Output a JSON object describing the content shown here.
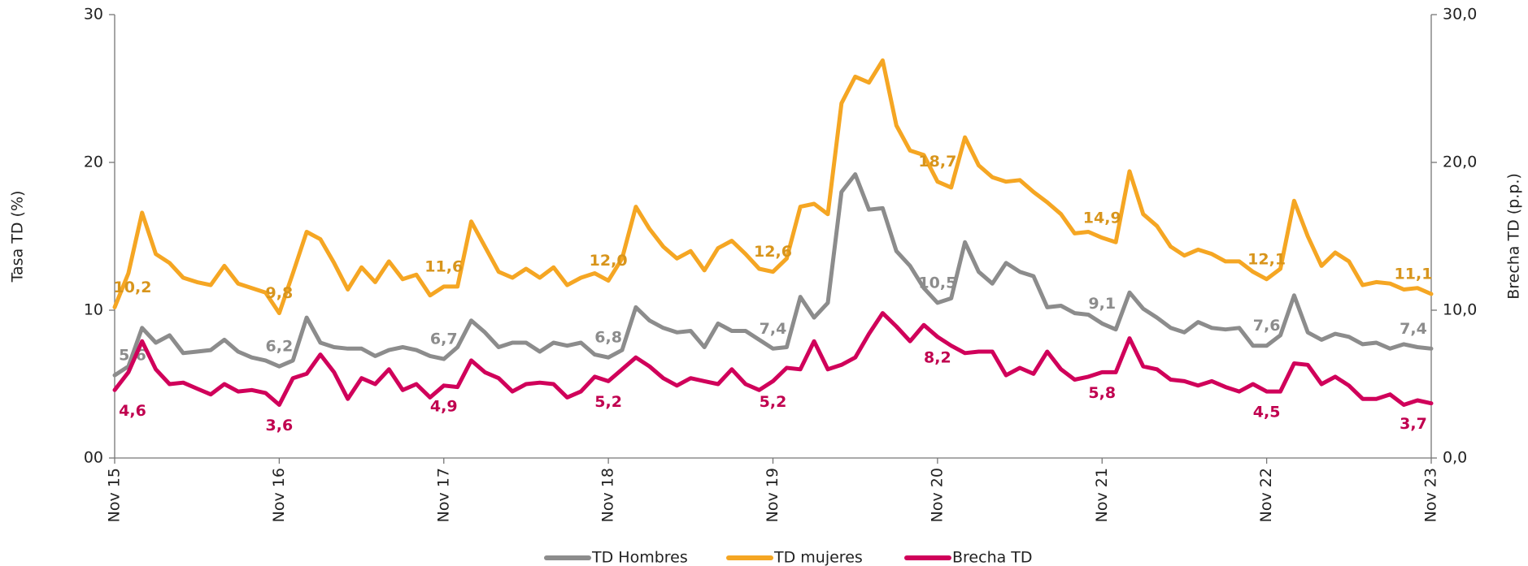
{
  "chart_data": {
    "type": "line",
    "y_label": "Tasa TD (%)",
    "y2_label": "Brecha TD (p.p.)",
    "categories": [
      "Nov 15",
      null,
      null,
      null,
      null,
      null,
      null,
      null,
      null,
      null,
      null,
      null,
      "Nov 16",
      null,
      null,
      null,
      null,
      null,
      null,
      null,
      null,
      null,
      null,
      null,
      "Nov 17",
      null,
      null,
      null,
      null,
      null,
      null,
      null,
      null,
      null,
      null,
      null,
      "Nov 18",
      null,
      null,
      null,
      null,
      null,
      null,
      null,
      null,
      null,
      null,
      null,
      "Nov 19",
      null,
      null,
      null,
      null,
      null,
      null,
      null,
      null,
      null,
      null,
      null,
      "Nov 20",
      null,
      null,
      null,
      null,
      null,
      null,
      null,
      null,
      null,
      null,
      null,
      "Nov 21",
      null,
      null,
      null,
      null,
      null,
      null,
      null,
      null,
      null,
      null,
      null,
      "Nov 22",
      null,
      null,
      null,
      null,
      null,
      null,
      null,
      null,
      null,
      null,
      null,
      "Nov 23"
    ],
    "ylim": [
      0,
      30
    ],
    "yticks": [
      {
        "value": 0,
        "label": "00"
      },
      10,
      20,
      30
    ],
    "y2lim": [
      0,
      30
    ],
    "y2ticks": [
      {
        "value": 0,
        "label": "0,0"
      },
      {
        "value": 10,
        "label": "10,0"
      },
      {
        "value": 20,
        "label": "20,0"
      },
      {
        "value": 30,
        "label": "30,0"
      }
    ],
    "legend": "bottom",
    "series": [
      {
        "name": "TD Hombres",
        "color": "#8c8c8c",
        "values": [
          5.6,
          6.2,
          8.8,
          7.8,
          8.3,
          7.1,
          7.2,
          7.3,
          8.0,
          7.2,
          6.8,
          6.6,
          6.2,
          6.6,
          9.5,
          7.8,
          7.5,
          7.4,
          7.4,
          6.9,
          7.3,
          7.5,
          7.3,
          6.9,
          6.7,
          7.5,
          9.3,
          8.5,
          7.5,
          7.8,
          7.8,
          7.2,
          7.8,
          7.6,
          7.8,
          7.0,
          6.8,
          7.3,
          10.2,
          9.3,
          8.8,
          8.5,
          8.6,
          7.5,
          9.1,
          8.6,
          8.6,
          8.0,
          7.4,
          7.5,
          10.9,
          9.5,
          10.5,
          18.0,
          19.2,
          16.8,
          16.9,
          14.0,
          13.0,
          11.5,
          10.5,
          10.8,
          14.6,
          12.6,
          11.8,
          13.2,
          12.6,
          12.3,
          10.2,
          10.3,
          9.8,
          9.7,
          9.1,
          8.7,
          11.2,
          10.1,
          9.5,
          8.8,
          8.5,
          9.2,
          8.8,
          8.7,
          8.8,
          7.6,
          7.6,
          8.3,
          11.0,
          8.5,
          8.0,
          8.4,
          8.2,
          7.7,
          7.8,
          7.4,
          7.7,
          7.5,
          7.4
        ],
        "value_labels": [
          "5,6",
          null,
          null,
          null,
          null,
          null,
          null,
          null,
          null,
          null,
          null,
          null,
          "6,2",
          null,
          null,
          null,
          null,
          null,
          null,
          null,
          null,
          null,
          null,
          null,
          "6,7",
          null,
          null,
          null,
          null,
          null,
          null,
          null,
          null,
          null,
          null,
          null,
          "6,8",
          null,
          null,
          null,
          null,
          null,
          null,
          null,
          null,
          null,
          null,
          null,
          "7,4",
          null,
          null,
          null,
          null,
          null,
          null,
          null,
          null,
          null,
          null,
          null,
          "10,5",
          null,
          null,
          null,
          null,
          null,
          null,
          null,
          null,
          null,
          null,
          null,
          "9,1",
          null,
          null,
          null,
          null,
          null,
          null,
          null,
          null,
          null,
          null,
          null,
          "7,6",
          null,
          null,
          null,
          null,
          null,
          null,
          null,
          null,
          null,
          null,
          null,
          "7,4"
        ]
      },
      {
        "name": "TD mujeres",
        "color": "#f5a623",
        "values": [
          10.2,
          12.5,
          16.6,
          13.8,
          13.2,
          12.2,
          11.9,
          11.7,
          13.0,
          11.8,
          11.5,
          11.2,
          9.8,
          12.5,
          15.3,
          14.8,
          13.2,
          11.4,
          12.9,
          11.9,
          13.3,
          12.1,
          12.4,
          11.0,
          11.6,
          11.6,
          16.0,
          14.3,
          12.6,
          12.2,
          12.8,
          12.2,
          12.9,
          11.7,
          12.2,
          12.5,
          12.0,
          13.5,
          17.0,
          15.5,
          14.3,
          13.5,
          14.0,
          12.7,
          14.2,
          14.7,
          13.8,
          12.8,
          12.6,
          13.5,
          17.0,
          17.2,
          16.5,
          24.0,
          25.8,
          25.4,
          26.9,
          22.5,
          20.8,
          20.5,
          18.7,
          18.3,
          21.7,
          19.8,
          19.0,
          18.7,
          18.8,
          18.0,
          17.3,
          16.5,
          15.2,
          15.3,
          14.9,
          14.6,
          19.4,
          16.5,
          15.7,
          14.3,
          13.7,
          14.1,
          13.8,
          13.3,
          13.3,
          12.6,
          12.1,
          12.8,
          17.4,
          15.0,
          13.0,
          13.9,
          13.3,
          11.7,
          11.9,
          11.8,
          11.4,
          11.5,
          11.1
        ],
        "value_labels": [
          "10,2",
          null,
          null,
          null,
          null,
          null,
          null,
          null,
          null,
          null,
          null,
          null,
          "9,8",
          null,
          null,
          null,
          null,
          null,
          null,
          null,
          null,
          null,
          null,
          null,
          "11,6",
          null,
          null,
          null,
          null,
          null,
          null,
          null,
          null,
          null,
          null,
          null,
          "12,0",
          null,
          null,
          null,
          null,
          null,
          null,
          null,
          null,
          null,
          null,
          null,
          "12,6",
          null,
          null,
          null,
          null,
          null,
          null,
          null,
          null,
          null,
          null,
          null,
          "18,7",
          null,
          null,
          null,
          null,
          null,
          null,
          null,
          null,
          null,
          null,
          null,
          "14,9",
          null,
          null,
          null,
          null,
          null,
          null,
          null,
          null,
          null,
          null,
          null,
          "12,1",
          null,
          null,
          null,
          null,
          null,
          null,
          null,
          null,
          null,
          null,
          null,
          "11,1"
        ]
      },
      {
        "name": "Brecha TD",
        "color": "#d0005a",
        "axis": "y2",
        "values": [
          4.6,
          5.8,
          7.9,
          6.0,
          5.0,
          5.1,
          4.7,
          4.3,
          5.0,
          4.5,
          4.6,
          4.4,
          3.6,
          5.4,
          5.7,
          7.0,
          5.8,
          4.0,
          5.4,
          5.0,
          6.0,
          4.6,
          5.0,
          4.1,
          4.9,
          4.8,
          6.6,
          5.8,
          5.4,
          4.5,
          5.0,
          5.1,
          5.0,
          4.1,
          4.5,
          5.5,
          5.2,
          6.0,
          6.8,
          6.2,
          5.4,
          4.9,
          5.4,
          5.2,
          5.0,
          6.0,
          5.0,
          4.6,
          5.2,
          6.1,
          6.0,
          7.9,
          6.0,
          6.3,
          6.8,
          8.4,
          9.8,
          8.9,
          7.9,
          9.0,
          8.2,
          7.6,
          7.1,
          7.2,
          7.2,
          5.6,
          6.1,
          5.7,
          7.2,
          6.0,
          5.3,
          5.5,
          5.8,
          5.8,
          8.1,
          6.2,
          6.0,
          5.3,
          5.2,
          4.9,
          5.2,
          4.8,
          4.5,
          5.0,
          4.5,
          4.5,
          6.4,
          6.3,
          5.0,
          5.5,
          4.9,
          4.0,
          4.0,
          4.3,
          3.6,
          3.9,
          3.7
        ],
        "value_labels": [
          "4,6",
          null,
          null,
          null,
          null,
          null,
          null,
          null,
          null,
          null,
          null,
          null,
          "3,6",
          null,
          null,
          null,
          null,
          null,
          null,
          null,
          null,
          null,
          null,
          null,
          "4,9",
          null,
          null,
          null,
          null,
          null,
          null,
          null,
          null,
          null,
          null,
          null,
          "5,2",
          null,
          null,
          null,
          null,
          null,
          null,
          null,
          null,
          null,
          null,
          null,
          "5,2",
          null,
          null,
          null,
          null,
          null,
          null,
          null,
          null,
          null,
          null,
          null,
          "8,2",
          null,
          null,
          null,
          null,
          null,
          null,
          null,
          null,
          null,
          null,
          null,
          "5,8",
          null,
          null,
          null,
          null,
          null,
          null,
          null,
          null,
          null,
          null,
          null,
          "4,5",
          null,
          null,
          null,
          null,
          null,
          null,
          null,
          null,
          null,
          null,
          null,
          "3,7"
        ]
      }
    ]
  }
}
